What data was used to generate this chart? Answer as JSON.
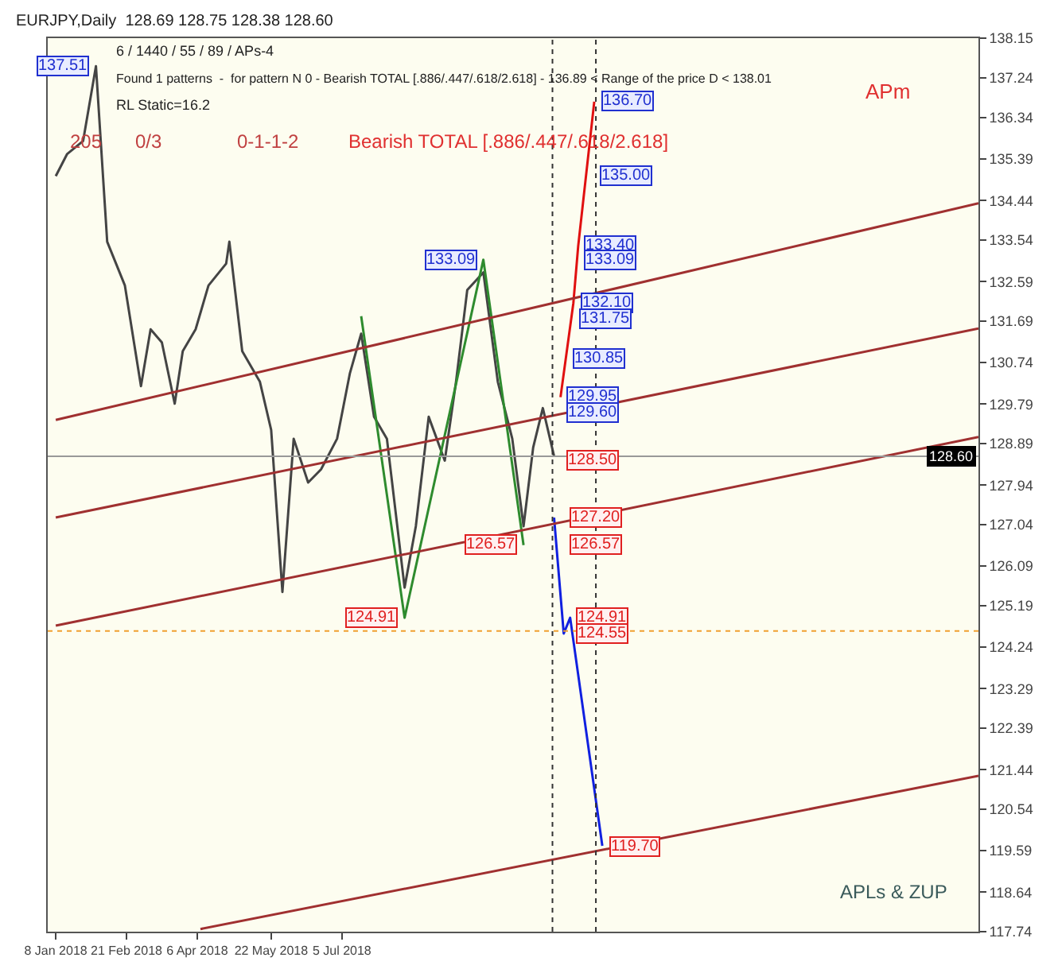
{
  "chart_data": {
    "type": "line",
    "title": "EURJPY,Daily  128.69 128.75 128.38 128.60",
    "annotations": [
      "6 / 1440 / 55 / 89 / APs-4",
      "Found 1 patterns  -  for pattern N 0 - Bearish TOTAL [.886/.447/.618/2.618] - 136.89 < Range of the price D < 138.01",
      "RL Static=16.2",
      "205",
      "0/3",
      "0-1-1-2",
      "Bearish TOTAL [.886/.447/.618/2.618]",
      "APm",
      "APLs & ZUP",
      {
        "text": "137.51",
        "x": "2018-02-02",
        "y": 137.51
      },
      {
        "text": "133.09",
        "x": "2018-10-01",
        "y": 133.09
      },
      {
        "text": "124.91",
        "x": "2018-08-13",
        "y": 124.91
      },
      {
        "text": "126.57",
        "x": "2018-10-26",
        "y": 126.57
      },
      {
        "text": "136.70",
        "x": "2018-12-09",
        "y": 136.7
      },
      {
        "text": "135.00",
        "x": "2018-12-08",
        "y": 135.0
      },
      {
        "text": "133.40",
        "x": "2018-11-29",
        "y": 133.4
      },
      {
        "text": "133.09",
        "x": "2018-11-29",
        "y": 133.09
      },
      {
        "text": "132.10",
        "x": "2018-11-27",
        "y": 132.1
      },
      {
        "text": "131.75",
        "x": "2018-11-26",
        "y": 131.75
      },
      {
        "text": "130.85",
        "x": "2018-11-22",
        "y": 130.85
      },
      {
        "text": "129.95",
        "x": "2018-11-18",
        "y": 129.95
      },
      {
        "text": "129.60",
        "x": "2018-11-18",
        "y": 129.6
      },
      {
        "text": "128.50",
        "x": "2018-11-18",
        "y": 128.5
      },
      {
        "text": "127.20",
        "x": "2018-11-20",
        "y": 127.2
      },
      {
        "text": "126.57",
        "x": "2018-11-20",
        "y": 126.57
      },
      {
        "text": "124.91",
        "x": "2018-11-24",
        "y": 124.91
      },
      {
        "text": "124.55",
        "x": "2018-11-24",
        "y": 124.55
      },
      {
        "text": "119.70",
        "x": "2018-12-14",
        "y": 119.7
      }
    ],
    "series": [
      {
        "color": "#444444",
        "x": [
          "2018-01-08",
          "2018-01-15",
          "2018-01-25",
          "2018-02-02",
          "2018-02-09",
          "2018-02-20",
          "2018-03-02",
          "2018-03-08",
          "2018-03-15",
          "2018-03-23",
          "2018-03-28",
          "2018-04-05",
          "2018-04-13",
          "2018-04-24",
          "2018-04-26",
          "2018-05-04",
          "2018-05-15",
          "2018-05-22",
          "2018-05-29",
          "2018-06-05",
          "2018-06-14",
          "2018-06-22",
          "2018-07-02",
          "2018-07-10",
          "2018-07-17",
          "2018-07-25",
          "2018-08-02",
          "2018-08-13",
          "2018-08-20",
          "2018-08-28",
          "2018-09-07",
          "2018-09-14",
          "2018-09-21",
          "2018-10-01",
          "2018-10-10",
          "2018-10-19",
          "2018-10-26",
          "2018-11-01",
          "2018-11-07",
          "2018-11-14"
        ],
        "values": [
          135.0,
          135.5,
          135.8,
          137.51,
          133.5,
          132.5,
          130.2,
          131.5,
          131.2,
          129.8,
          131.0,
          131.5,
          132.5,
          133.0,
          133.5,
          131.0,
          130.3,
          129.2,
          125.5,
          129.0,
          128.0,
          128.3,
          129.0,
          130.5,
          131.4,
          129.5,
          129.0,
          125.6,
          127.0,
          129.5,
          128.5,
          130.3,
          132.4,
          132.8,
          130.3,
          129.0,
          127.0,
          128.8,
          129.7,
          128.6
        ]
      },
      {
        "color": "#2e8b2e",
        "x": [
          "2018-07-17",
          "2018-08-13",
          "2018-10-01",
          "2018-10-26"
        ],
        "values": [
          131.8,
          124.91,
          133.09,
          126.57
        ]
      },
      {
        "color": "#e01010",
        "x": [
          "2018-11-18",
          "2018-11-26",
          "2018-11-29",
          "2018-12-09"
        ],
        "values": [
          129.95,
          132.1,
          133.4,
          136.7
        ]
      },
      {
        "color": "#1020e0",
        "x": [
          "2018-11-14",
          "2018-11-20",
          "2018-11-24",
          "2018-12-14"
        ],
        "values": [
          127.2,
          124.55,
          124.91,
          119.7
        ]
      },
      {
        "color": "#a03030",
        "x": [
          "2018-01-08",
          "2019-08-05"
        ],
        "values": [
          129.43,
          134.38
        ]
      },
      {
        "color": "#a03030",
        "x": [
          "2018-01-08",
          "2019-08-05"
        ],
        "values": [
          127.2,
          131.52
        ]
      },
      {
        "color": "#a03030",
        "x": [
          "2018-01-08",
          "2019-08-05"
        ],
        "values": [
          124.73,
          129.04
        ]
      },
      {
        "color": "#a03030",
        "x": [
          "2018-04-08",
          "2019-08-05"
        ],
        "values": [
          117.8,
          121.3
        ]
      }
    ],
    "ref_lines": [
      {
        "axis": "y",
        "value": 128.6,
        "label": "128.60",
        "color": "#999999",
        "line_style": "solid"
      },
      {
        "axis": "y",
        "value": 124.61,
        "color": "#f0a030",
        "line_style": "dotted"
      },
      {
        "axis": "x",
        "value": "2018-11-13",
        "color": "#333333",
        "line_style": "dotted"
      },
      {
        "axis": "x",
        "value": "2018-12-10",
        "color": "#333333",
        "line_style": "dotted"
      }
    ],
    "xlim": [
      "2018-01-03",
      "2019-08-05"
    ],
    "xticks": [
      {
        "value": "2018-01-08",
        "label": "8 Jan 2018"
      },
      {
        "value": "2018-02-21",
        "label": "21 Feb 2018"
      },
      {
        "value": "2018-04-06",
        "label": "6 Apr 2018"
      },
      {
        "value": "2018-05-22",
        "label": "22 May 2018"
      },
      {
        "value": "2018-07-05",
        "label": "5 Jul 2018"
      }
    ],
    "ylim": [
      117.74,
      138.15
    ],
    "yticks": [
      117.74,
      118.64,
      119.59,
      120.54,
      121.44,
      122.39,
      123.29,
      124.24,
      125.19,
      126.09,
      127.04,
      127.94,
      128.89,
      129.79,
      130.74,
      131.69,
      132.59,
      133.54,
      134.44,
      135.39,
      136.34,
      137.24,
      138.15
    ],
    "grid": false
  }
}
